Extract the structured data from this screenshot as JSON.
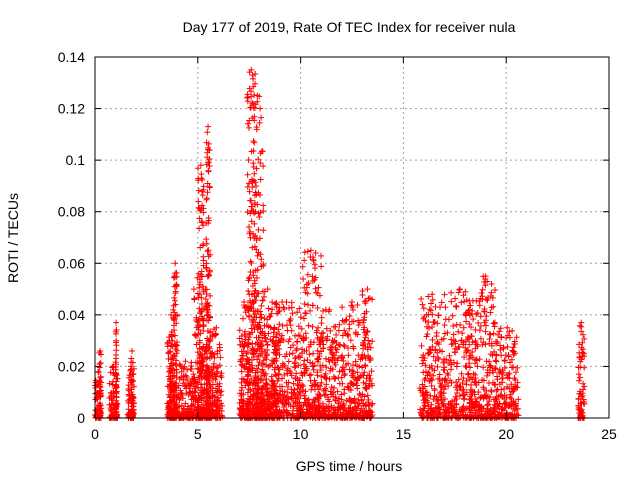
{
  "chart_data": {
    "type": "scatter",
    "title": "Day 177 of 2019, Rate Of TEC Index for receiver nula",
    "xlabel": "GPS time / hours",
    "ylabel": "ROTI / TECUs",
    "xlim": [
      0,
      25
    ],
    "ylim": [
      0,
      0.14
    ],
    "xticks": [
      0,
      5,
      10,
      15,
      20,
      25
    ],
    "xtick_labels": [
      "0",
      "5",
      "10",
      "15",
      "20",
      "25"
    ],
    "yticks": [
      0,
      0.02,
      0.04,
      0.06,
      0.08,
      0.1,
      0.12,
      0.14
    ],
    "ytick_labels": [
      "0",
      "0.02",
      "0.04",
      "0.06",
      "0.08",
      "0.1",
      "0.12",
      "0.14"
    ],
    "grid": true,
    "marker": "+",
    "color": "#ff0000",
    "clusters": [
      {
        "x": [
          0.0,
          0.3
        ],
        "ymax": 0.018
      },
      {
        "x": [
          0.2,
          0.3
        ],
        "ymax": 0.026
      },
      {
        "x": [
          0.7,
          1.1
        ],
        "ymax": 0.02
      },
      {
        "x": [
          1.0,
          1.05
        ],
        "ymax": 0.037
      },
      {
        "x": [
          1.6,
          1.9
        ],
        "ymax": 0.02
      },
      {
        "x": [
          1.75,
          1.85
        ],
        "ymax": 0.026
      },
      {
        "x": [
          3.5,
          4.0
        ],
        "ymax": 0.03
      },
      {
        "x": [
          3.6,
          3.8
        ],
        "ymax": 0.04
      },
      {
        "x": [
          3.8,
          4.0
        ],
        "ymax": 0.06
      },
      {
        "x": [
          4.0,
          4.8
        ],
        "ymax": 0.022
      },
      {
        "x": [
          4.8,
          5.6
        ],
        "ymax": 0.055
      },
      {
        "x": [
          5.0,
          5.3
        ],
        "ymax": 0.098
      },
      {
        "x": [
          5.4,
          5.6
        ],
        "ymax": 0.113
      },
      {
        "x": [
          5.6,
          6.2
        ],
        "ymax": 0.035
      },
      {
        "x": [
          7.0,
          7.5
        ],
        "ymax": 0.045
      },
      {
        "x": [
          7.4,
          7.8
        ],
        "ymax": 0.135
      },
      {
        "x": [
          7.6,
          8.2
        ],
        "ymax": 0.125
      },
      {
        "x": [
          7.8,
          9.0
        ],
        "ymax": 0.05
      },
      {
        "x": [
          8.2,
          10.0
        ],
        "ymax": 0.045
      },
      {
        "x": [
          10.0,
          11.0
        ],
        "ymax": 0.065
      },
      {
        "x": [
          10.8,
          12.0
        ],
        "ymax": 0.042
      },
      {
        "x": [
          12.0,
          13.0
        ],
        "ymax": 0.045
      },
      {
        "x": [
          13.0,
          13.5
        ],
        "ymax": 0.05
      },
      {
        "x": [
          15.8,
          17.0
        ],
        "ymax": 0.048
      },
      {
        "x": [
          17.0,
          18.5
        ],
        "ymax": 0.05
      },
      {
        "x": [
          18.5,
          19.5
        ],
        "ymax": 0.055
      },
      {
        "x": [
          19.5,
          20.6
        ],
        "ymax": 0.035
      },
      {
        "x": [
          23.5,
          23.8
        ],
        "ymax": 0.037
      }
    ]
  }
}
